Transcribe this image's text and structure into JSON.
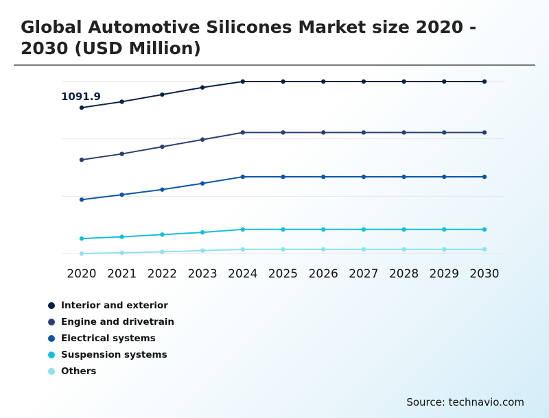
{
  "title": "Global Automotive Silicones Market size 2020 - 2030 (USD Million)",
  "source": "Source: technavio.com",
  "chart_data": {
    "type": "line",
    "title": "Global Automotive Silicones Market size 2020 - 2030 (USD Million)",
    "xlabel": "",
    "ylabel": "",
    "grid": true,
    "legend_position": "bottom-left",
    "categories": [
      "2020",
      "2021",
      "2022",
      "2023",
      "2024",
      "2025",
      "2026",
      "2027",
      "2028",
      "2029",
      "2030"
    ],
    "annotations": [
      {
        "series": "Interior and exterior",
        "category": "2020",
        "text": "1091.9"
      }
    ],
    "series": [
      {
        "name": "Interior and exterior",
        "color": "#0a1f44",
        "values": [
          1091.9,
          1116,
          1145,
          1174,
          1198,
          1198,
          1198,
          1198,
          1198,
          1198,
          1198
        ]
      },
      {
        "name": "Engine and drivetrain",
        "color": "#2a3f70",
        "values": [
          880,
          904,
          933,
          962,
          991,
          991,
          991,
          991,
          991,
          991,
          991
        ]
      },
      {
        "name": "Electrical systems",
        "color": "#0d56a6",
        "values": [
          718,
          738,
          759,
          784,
          811,
          811,
          811,
          811,
          811,
          811,
          811
        ]
      },
      {
        "name": "Suspension systems",
        "color": "#11bfdc",
        "values": [
          560,
          567,
          576,
          585,
          597,
          597,
          597,
          597,
          597,
          597,
          597
        ]
      },
      {
        "name": "Others",
        "color": "#8ee0f3",
        "values": [
          499,
          502,
          506,
          511,
          516,
          516,
          516,
          516,
          516,
          516,
          516
        ]
      }
    ]
  }
}
